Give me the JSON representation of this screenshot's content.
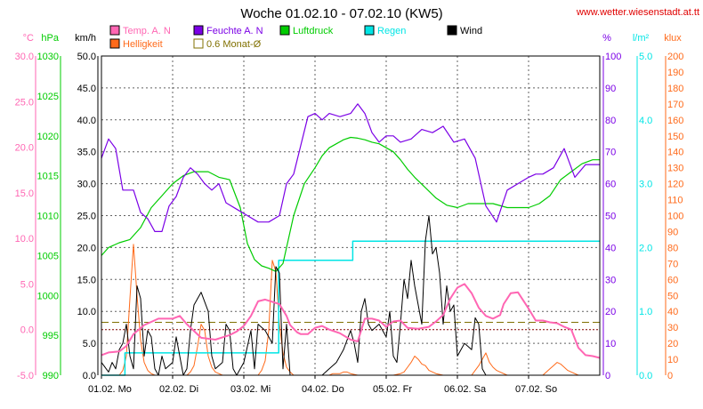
{
  "chart_data": {
    "type": "line",
    "title": "Woche 01.02.10 - 07.02.10 (KW5)",
    "source": "www.wetter.wiesenstadt.at.tt",
    "legend": [
      {
        "label": "Temp. A. N",
        "color": "#ff66b3"
      },
      {
        "label": "Feuchte A. N",
        "color": "#7b00e6"
      },
      {
        "label": "Luftdruck",
        "color": "#00cc00"
      },
      {
        "label": "Regen",
        "color": "#00e5e5"
      },
      {
        "label": "Wind",
        "color": "#000000"
      },
      {
        "label": "Helligkeit",
        "color": "#ff6a1a"
      },
      {
        "label": "0.6 Monat-Ø",
        "color": "#807000"
      }
    ],
    "axes": {
      "temp": {
        "unit": "°C",
        "color": "#ff66b3",
        "ticks": [
          "30.0",
          "25.0",
          "20.0",
          "15.0",
          "10.0",
          "5.0",
          "0.0",
          "-5.0"
        ]
      },
      "pressure": {
        "unit": "hPa",
        "color": "#00cc00",
        "ticks": [
          "1030",
          "1025",
          "1020",
          "1015",
          "1010",
          "1005",
          "1000",
          "995",
          "990"
        ]
      },
      "wind": {
        "unit": "km/h",
        "color": "#000000",
        "ticks": [
          "50.0",
          "45.0",
          "40.0",
          "35.0",
          "30.0",
          "25.0",
          "20.0",
          "15.0",
          "10.0",
          "5.0",
          "0.0"
        ]
      },
      "humidity": {
        "unit": "%",
        "color": "#7b00e6",
        "ticks": [
          "100",
          "90",
          "80",
          "70",
          "60",
          "50",
          "40",
          "30",
          "20",
          "10",
          "0"
        ]
      },
      "rain": {
        "unit": "l/m²",
        "color": "#00e5e5",
        "ticks": [
          "5.0",
          "4.0",
          "3.0",
          "2.0",
          "1.0",
          "0.0"
        ]
      },
      "light": {
        "unit": "klux",
        "color": "#ff6a1a",
        "ticks": [
          "200",
          "190",
          "180",
          "170",
          "160",
          "150",
          "140",
          "130",
          "120",
          "110",
          "100",
          "90",
          "80",
          "70",
          "60",
          "50",
          "40",
          "30",
          "20",
          "10",
          "0"
        ]
      }
    },
    "x_ticks": [
      "01.02.  Mo",
      "02.02.  Di",
      "03.02.  Mi",
      "04.02.  Do",
      "05.02.  Fr",
      "06.02.  Sa",
      "07.02.  So"
    ],
    "xlim": [
      0,
      7
    ],
    "grid": true,
    "reference_lines": {
      "temp_avg_C": 0.8,
      "monat_avg_temp_C": 0.0
    },
    "series": {
      "temp": {
        "x": [
          0,
          0.1,
          0.25,
          0.35,
          0.45,
          0.6,
          0.8,
          1.0,
          1.1,
          1.2,
          1.4,
          1.6,
          1.8,
          1.9,
          2.0,
          2.1,
          2.2,
          2.3,
          2.5,
          2.6,
          2.65,
          2.7,
          2.75,
          2.8,
          2.9,
          3.0,
          3.1,
          3.2,
          3.35,
          3.5,
          3.6,
          3.7,
          3.8,
          3.9,
          4.0,
          4.1,
          4.2,
          4.3,
          4.45,
          4.6,
          4.7,
          4.8,
          4.9,
          5.0,
          5.1,
          5.2,
          5.3,
          5.4,
          5.5,
          5.6,
          5.65,
          5.75,
          5.85,
          6.0,
          6.1,
          6.2,
          6.3,
          6.4,
          6.5,
          6.6,
          6.7,
          6.8,
          6.9,
          7.0
        ],
        "y": [
          -2.8,
          -2.5,
          -2.4,
          -1.8,
          -0.5,
          0.5,
          1.2,
          1.2,
          1.5,
          0.6,
          -0.9,
          -1.1,
          -0.6,
          -0.2,
          0.4,
          1.5,
          3.1,
          3.3,
          2.8,
          1.5,
          0.5,
          0.1,
          -0.3,
          -0.5,
          -0.5,
          0.2,
          0.4,
          0.0,
          -0.4,
          -1.1,
          -1.3,
          1.2,
          1.2,
          1.0,
          0.3,
          0.9,
          1.0,
          0.2,
          0.1,
          0.3,
          0.9,
          1.6,
          3.4,
          4.6,
          5.0,
          4.0,
          2.4,
          1.5,
          1.2,
          1.6,
          2.8,
          4.0,
          4.1,
          2.3,
          1.0,
          1.0,
          0.8,
          0.7,
          0.3,
          0.0,
          -2.0,
          -2.8,
          -2.9,
          -3.1
        ]
      },
      "humidity": {
        "x": [
          0,
          0.1,
          0.2,
          0.3,
          0.45,
          0.55,
          0.65,
          0.75,
          0.85,
          0.95,
          1.05,
          1.15,
          1.25,
          1.35,
          1.45,
          1.55,
          1.65,
          1.75,
          1.9,
          2.05,
          2.2,
          2.35,
          2.5,
          2.6,
          2.7,
          2.8,
          2.9,
          3.0,
          3.1,
          3.2,
          3.35,
          3.5,
          3.6,
          3.7,
          3.8,
          3.9,
          4.0,
          4.1,
          4.2,
          4.35,
          4.5,
          4.65,
          4.8,
          4.95,
          5.1,
          5.25,
          5.4,
          5.55,
          5.7,
          5.85,
          6.0,
          6.1,
          6.2,
          6.35,
          6.5,
          6.65,
          6.8,
          7.0
        ],
        "y": [
          68,
          74,
          71,
          58,
          58,
          51,
          49,
          45,
          45,
          53,
          56,
          62,
          65,
          63,
          60,
          58,
          60,
          54,
          52,
          50,
          48,
          48,
          50,
          60,
          63,
          72,
          81,
          82,
          80,
          82,
          81,
          82,
          85,
          82,
          76,
          73,
          75,
          75,
          73,
          74,
          77,
          76,
          78,
          73,
          74,
          68,
          53,
          48,
          58,
          60,
          62,
          63,
          63,
          65,
          71,
          62,
          66,
          66
        ]
      },
      "pressure": {
        "x": [
          0,
          0.1,
          0.25,
          0.4,
          0.55,
          0.7,
          0.85,
          1.0,
          1.15,
          1.3,
          1.5,
          1.65,
          1.8,
          1.95,
          2.05,
          2.15,
          2.25,
          2.35,
          2.45,
          2.55,
          2.7,
          2.85,
          3.0,
          3.1,
          3.2,
          3.3,
          3.4,
          3.5,
          3.6,
          3.7,
          3.8,
          3.9,
          4.0,
          4.1,
          4.2,
          4.3,
          4.4,
          4.55,
          4.7,
          4.85,
          5.0,
          5.15,
          5.3,
          5.5,
          5.7,
          5.85,
          6.0,
          6.15,
          6.3,
          6.45,
          6.6,
          6.75,
          6.9,
          7.0
        ],
        "y": [
          1005,
          1006,
          1006.6,
          1007,
          1008.5,
          1011,
          1012.5,
          1014,
          1015,
          1015.5,
          1015.5,
          1014.8,
          1014.5,
          1011,
          1006.5,
          1004.5,
          1003.7,
          1003.4,
          1003,
          1004,
          1010,
          1014,
          1016,
          1017.5,
          1018.5,
          1019,
          1019.5,
          1019.8,
          1019.7,
          1019.5,
          1019.2,
          1019,
          1018.5,
          1018,
          1017,
          1015.8,
          1014.8,
          1013.5,
          1012.2,
          1011.3,
          1011,
          1011.5,
          1011.5,
          1011.5,
          1011,
          1011,
          1011,
          1011.5,
          1012.5,
          1014.5,
          1015.5,
          1016.5,
          1017,
          1017
        ]
      },
      "wind": {
        "x": [
          0,
          0.1,
          0.15,
          0.2,
          0.25,
          0.3,
          0.35,
          0.4,
          0.45,
          0.5,
          0.55,
          0.6,
          0.65,
          0.7,
          0.75,
          0.8,
          0.85,
          0.9,
          1.0,
          1.05,
          1.1,
          1.15,
          1.2,
          1.25,
          1.3,
          1.4,
          1.5,
          1.55,
          1.6,
          1.7,
          1.75,
          1.8,
          1.85,
          1.9,
          2.0,
          2.1,
          2.15,
          2.2,
          2.3,
          2.4,
          2.45,
          2.5,
          2.55,
          2.6,
          2.65,
          2.75,
          2.8,
          2.85,
          2.9,
          3.0,
          3.1,
          3.2,
          3.3,
          3.4,
          3.5,
          3.55,
          3.6,
          3.65,
          3.7,
          3.75,
          3.8,
          3.9,
          4.0,
          4.05,
          4.1,
          4.15,
          4.2,
          4.25,
          4.3,
          4.35,
          4.4,
          4.5,
          4.55,
          4.6,
          4.65,
          4.7,
          4.75,
          4.8,
          4.85,
          4.9,
          4.95,
          5.0,
          5.1,
          5.2,
          5.25,
          5.3,
          5.35,
          5.4,
          5.45,
          5.5,
          5.55,
          5.6,
          5.7,
          5.8,
          5.9,
          6.0,
          6.1,
          6.2,
          6.3,
          6.4,
          6.5,
          6.6,
          6.7,
          6.8,
          6.9,
          7.0
        ],
        "y": [
          2,
          0.5,
          2,
          1,
          4,
          5,
          8,
          3,
          1,
          14,
          12,
          3,
          7,
          6,
          1,
          0,
          3,
          1,
          2,
          6,
          3,
          0,
          1,
          7,
          11,
          13,
          10,
          3,
          1,
          2,
          8,
          7,
          1,
          0,
          2,
          7,
          1,
          8,
          7,
          5,
          17,
          16,
          1,
          8,
          0,
          0,
          0,
          0,
          0,
          0,
          0,
          1,
          2,
          4,
          7,
          5,
          2,
          10,
          12,
          8,
          7,
          8,
          6,
          10,
          3,
          2,
          8,
          15,
          12,
          18,
          14,
          8,
          21,
          25,
          19,
          20,
          16,
          8,
          14,
          10,
          11,
          3,
          5,
          4,
          9,
          8,
          1,
          0,
          0,
          0,
          0,
          0,
          0,
          0,
          0,
          0,
          0,
          0,
          0,
          0,
          0,
          0,
          0,
          0,
          0,
          0
        ]
      },
      "rain_cumulative": {
        "x": [
          0,
          0.32,
          0.33,
          2.48,
          2.49,
          2.5,
          2.64,
          2.65,
          2.75,
          2.76,
          3.52,
          3.53,
          4.1,
          4.11,
          7.0
        ],
        "y": [
          0,
          0,
          0.35,
          0.35,
          1.8,
          1.8,
          1.8,
          1.8,
          1.8,
          1.8,
          1.8,
          2.1,
          2.1,
          2.1,
          2.1
        ]
      },
      "light": {
        "x": [
          0,
          0.25,
          0.3,
          0.35,
          0.4,
          0.45,
          0.5,
          0.55,
          0.6,
          0.65,
          0.7,
          0.75,
          0.8,
          1.0,
          1.2,
          1.25,
          1.3,
          1.35,
          1.4,
          1.45,
          1.5,
          1.55,
          1.6,
          1.65,
          1.7,
          1.8,
          2.0,
          2.2,
          2.25,
          2.3,
          2.35,
          2.4,
          2.45,
          2.5,
          2.55,
          2.6,
          2.65,
          2.7,
          2.8,
          3.0,
          3.2,
          3.25,
          3.3,
          3.35,
          3.4,
          3.45,
          3.5,
          3.6,
          3.7,
          3.8,
          4.0,
          4.1,
          4.2,
          4.25,
          4.3,
          4.35,
          4.4,
          4.45,
          4.5,
          4.55,
          4.6,
          4.7,
          4.8,
          5.0,
          5.2,
          5.25,
          5.3,
          5.35,
          5.4,
          5.45,
          5.5,
          5.55,
          5.6,
          5.7,
          6.0,
          6.2,
          6.25,
          6.3,
          6.35,
          6.4,
          6.45,
          6.5,
          6.55,
          6.6,
          6.7,
          7.0
        ],
        "y": [
          0,
          0,
          3,
          12,
          48,
          82,
          50,
          22,
          8,
          3,
          1,
          0,
          0,
          0,
          0,
          2,
          6,
          18,
          32,
          28,
          12,
          5,
          2,
          1,
          0,
          0,
          0,
          0,
          3,
          9,
          28,
          72,
          65,
          32,
          14,
          5,
          2,
          0,
          0,
          0,
          0,
          1,
          1,
          1,
          2,
          2,
          1,
          0,
          0,
          0,
          0,
          0,
          1,
          2,
          5,
          8,
          12,
          10,
          7,
          6,
          3,
          1,
          0,
          0,
          0,
          3,
          6,
          10,
          14,
          8,
          5,
          3,
          2,
          0,
          0,
          0,
          2,
          4,
          6,
          8,
          7,
          5,
          3,
          2,
          0,
          0
        ]
      }
    }
  }
}
